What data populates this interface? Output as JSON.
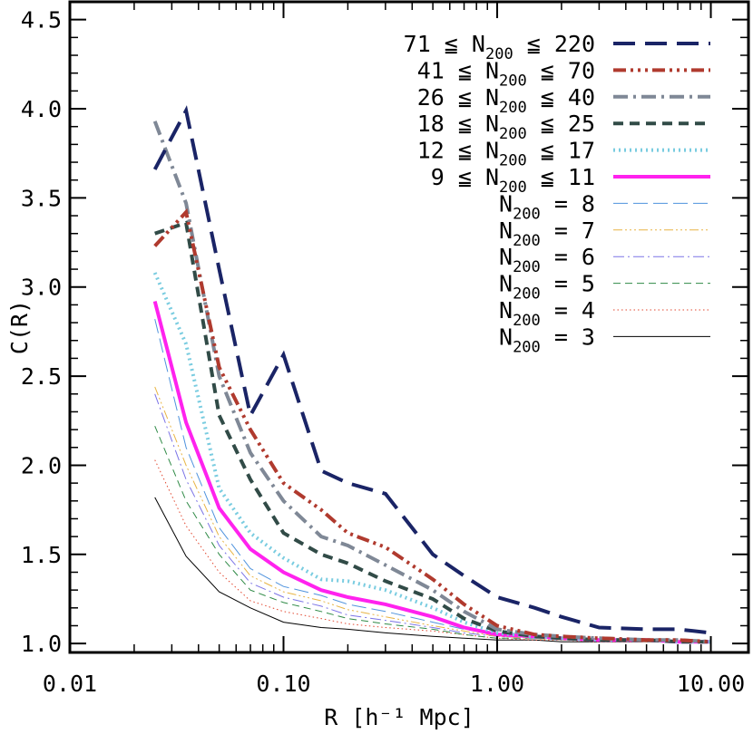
{
  "chart_data": {
    "type": "line",
    "title": "",
    "xlabel": "R [h⁻¹ Mpc]",
    "ylabel": "C(R)",
    "xscale": "log",
    "xlim": [
      0.01,
      15
    ],
    "ylim": [
      0.95,
      4.6
    ],
    "xticks": [
      {
        "value": 0.01,
        "label": "0.01"
      },
      {
        "value": 0.1,
        "label": "0.10"
      },
      {
        "value": 1,
        "label": "1.00"
      },
      {
        "value": 10,
        "label": "10.00"
      }
    ],
    "yticks": [
      {
        "value": 1.0,
        "label": "1.0"
      },
      {
        "value": 1.5,
        "label": "1.5"
      },
      {
        "value": 2.0,
        "label": "2.0"
      },
      {
        "value": 2.5,
        "label": "2.5"
      },
      {
        "value": 3.0,
        "label": "3.0"
      },
      {
        "value": 3.5,
        "label": "3.5"
      },
      {
        "value": 4.0,
        "label": "4.0"
      },
      {
        "value": 4.5,
        "label": "4.5"
      }
    ],
    "legend_placement": "top-right",
    "x": [
      0.025,
      0.035,
      0.05,
      0.07,
      0.1,
      0.15,
      0.2,
      0.3,
      0.5,
      0.7,
      1.0,
      1.5,
      2.0,
      3.0,
      5.0,
      7.0,
      10.0
    ],
    "series": [
      {
        "label_pre": "71 ≦ N",
        "label_sub": "200",
        "label_post": " ≦ 220",
        "color": "#1a2466",
        "width": 4,
        "dash": "24,11",
        "values": [
          3.66,
          3.99,
          3.1,
          2.28,
          2.62,
          1.97,
          1.9,
          1.84,
          1.5,
          1.38,
          1.26,
          1.2,
          1.15,
          1.09,
          1.08,
          1.08,
          1.06
        ]
      },
      {
        "label_pre": "41 ≦ N",
        "label_sub": "200",
        "label_post": " ≦ 70",
        "color": "#b03a2e",
        "width": 4,
        "dash": "14,5,3,5,3,5,3,5",
        "values": [
          3.23,
          3.42,
          2.55,
          2.2,
          1.9,
          1.75,
          1.62,
          1.54,
          1.36,
          1.22,
          1.1,
          1.05,
          1.04,
          1.03,
          1.02,
          1.02,
          1.01
        ]
      },
      {
        "label_pre": "26 ≦ N",
        "label_sub": "200",
        "label_post": " ≦ 40",
        "color": "#7f8896",
        "width": 4,
        "dash": "16,6,3,6",
        "values": [
          3.93,
          3.47,
          2.5,
          2.07,
          1.8,
          1.6,
          1.55,
          1.44,
          1.3,
          1.18,
          1.08,
          1.05,
          1.04,
          1.03,
          1.02,
          1.02,
          1.01
        ]
      },
      {
        "label_pre": "18 ≦ N",
        "label_sub": "200",
        "label_post": " ≦ 25",
        "color": "#314b47",
        "width": 4,
        "dash": "11,7",
        "values": [
          3.3,
          3.36,
          2.28,
          1.92,
          1.62,
          1.5,
          1.45,
          1.35,
          1.25,
          1.14,
          1.07,
          1.04,
          1.03,
          1.02,
          1.02,
          1.01,
          1.01
        ]
      },
      {
        "label_pre": "12 ≦ N",
        "label_sub": "200",
        "label_post": " ≦ 17",
        "color": "#79cce0",
        "width": 4,
        "dash": "2,4",
        "values": [
          3.08,
          2.68,
          1.87,
          1.62,
          1.48,
          1.36,
          1.35,
          1.3,
          1.2,
          1.12,
          1.06,
          1.04,
          1.03,
          1.02,
          1.02,
          1.01,
          1.01
        ]
      },
      {
        "label_pre": "9 ≦ N",
        "label_sub": "200",
        "label_post": " ≦ 11",
        "color": "#ff22ee",
        "width": 4,
        "dash": "",
        "values": [
          2.92,
          2.24,
          1.76,
          1.53,
          1.4,
          1.3,
          1.26,
          1.22,
          1.15,
          1.09,
          1.05,
          1.04,
          1.03,
          1.02,
          1.02,
          1.01,
          1.01
        ]
      },
      {
        "label_pre": "N",
        "label_sub": "200",
        "label_post": " = 8",
        "color": "#4f93dd",
        "width": 1,
        "dash": "16,6",
        "values": [
          2.82,
          2.1,
          1.65,
          1.42,
          1.32,
          1.27,
          1.22,
          1.18,
          1.12,
          1.08,
          1.05,
          1.03,
          1.03,
          1.02,
          1.02,
          1.01,
          1.01
        ]
      },
      {
        "label_pre": "N",
        "label_sub": "200",
        "label_post": " = 7",
        "color": "#e8b444",
        "width": 1,
        "dash": "10,3,2,3,2,3,2,3",
        "values": [
          2.44,
          2.0,
          1.6,
          1.38,
          1.29,
          1.24,
          1.19,
          1.15,
          1.1,
          1.07,
          1.04,
          1.03,
          1.02,
          1.02,
          1.01,
          1.01,
          1.01
        ]
      },
      {
        "label_pre": "N",
        "label_sub": "200",
        "label_post": " = 6",
        "color": "#7b73e6",
        "width": 1,
        "dash": "12,4,2,4",
        "values": [
          2.4,
          1.92,
          1.55,
          1.34,
          1.26,
          1.21,
          1.16,
          1.13,
          1.09,
          1.06,
          1.04,
          1.03,
          1.02,
          1.02,
          1.01,
          1.01,
          1.01
        ]
      },
      {
        "label_pre": "N",
        "label_sub": "200",
        "label_post": " = 5",
        "color": "#2f8a46",
        "width": 1,
        "dash": "8,5",
        "values": [
          2.22,
          1.8,
          1.5,
          1.3,
          1.23,
          1.18,
          1.14,
          1.11,
          1.08,
          1.05,
          1.03,
          1.03,
          1.02,
          1.02,
          1.01,
          1.01,
          1.01
        ]
      },
      {
        "label_pre": "N",
        "label_sub": "200",
        "label_post": " = 4",
        "color": "#e2472f",
        "width": 1,
        "dash": "1.5,3",
        "values": [
          2.03,
          1.66,
          1.4,
          1.24,
          1.18,
          1.14,
          1.11,
          1.09,
          1.07,
          1.05,
          1.03,
          1.02,
          1.02,
          1.01,
          1.01,
          1.01,
          1.01
        ]
      },
      {
        "label_pre": "N",
        "label_sub": "200",
        "label_post": " = 3",
        "color": "#000000",
        "width": 1,
        "dash": "",
        "values": [
          1.82,
          1.49,
          1.29,
          1.2,
          1.12,
          1.09,
          1.08,
          1.06,
          1.04,
          1.03,
          1.02,
          1.02,
          1.01,
          1.01,
          1.01,
          1.01,
          1.01
        ]
      }
    ]
  }
}
